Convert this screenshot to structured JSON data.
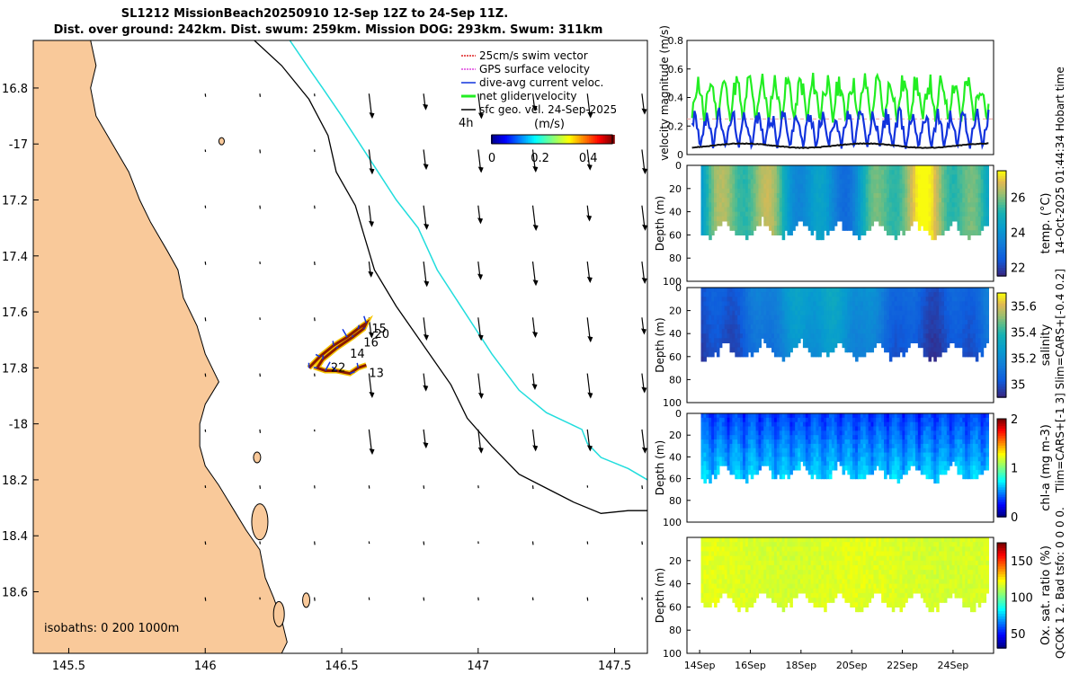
{
  "title": {
    "line1": "SL1212 MissionBeach20250910 12-Sep 12Z to 24-Sep 11Z.",
    "line2": "Dist. over ground: 242km. Dist. swum: 259km. Mission DOG: 293km. Swum: 311km"
  },
  "side_text": {
    "line1": "14-Oct-2025 01:44:34 Hobart time",
    "line2": "Tlim=CARS+[-1 3] Slim=CARS+[-0.4 0.2]",
    "line3": "QCOK 1  2. Bad tsfo: 0  0  0  0."
  },
  "colors": {
    "land": "#f9c99a",
    "isobath_200": "#000000",
    "isobath_1000": "#22dddd",
    "glider_net": "#22ee22",
    "dive_avg": "#1133dd",
    "swim": "#dd2222",
    "gps": "#dd44dd"
  },
  "chart_data": [
    {
      "type": "map",
      "xlim": [
        145.37,
        147.62
      ],
      "ylim": [
        -18.82,
        -16.63
      ],
      "x_ticks": [
        145.5,
        146,
        146.5,
        147,
        147.5
      ],
      "x_tick_labels": [
        "145.5",
        "146",
        "146.5",
        "147",
        "147.5"
      ],
      "y_ticks": [
        -16.8,
        -17,
        -17.2,
        -17.4,
        -17.6,
        -17.8,
        -18,
        -18.2,
        -18.4,
        -18.6
      ],
      "y_tick_labels": [
        "16.8",
        "-17",
        "17.2",
        "17.4",
        "17.6",
        "17.8",
        "-18",
        "18.2",
        "18.4",
        "18.6"
      ],
      "legend": {
        "position": "top-right",
        "entries": [
          "25cm/s swim vector",
          "GPS surface velocity",
          "dive-avg current veloc.",
          "net glider velocity",
          "sfc geo. vel. 24-Sep-2025"
        ]
      },
      "isobath_label": "isobaths: 0   200  1000m",
      "colorbar": {
        "title": "(m/s)",
        "ticks": [
          0,
          0.2,
          0.4
        ],
        "tick_labels": [
          "0",
          "0.2",
          "0.4"
        ],
        "range": [
          0,
          0.5
        ],
        "label_4h": "4h"
      },
      "track_labels": [
        {
          "text": "15",
          "lon": 146.61,
          "lat": -17.66
        },
        {
          "text": "20",
          "lon": 146.62,
          "lat": -17.68
        },
        {
          "text": "16",
          "lon": 146.58,
          "lat": -17.71
        },
        {
          "text": "14",
          "lon": 146.53,
          "lat": -17.75
        },
        {
          "text": "22",
          "lon": 146.46,
          "lat": -17.8
        },
        {
          "text": "13",
          "lon": 146.6,
          "lat": -17.82
        }
      ],
      "isobath_200": [
        [
          146.18,
          -16.63
        ],
        [
          146.28,
          -16.72
        ],
        [
          146.38,
          -16.84
        ],
        [
          146.45,
          -16.97
        ],
        [
          146.48,
          -17.1
        ],
        [
          146.55,
          -17.22
        ],
        [
          146.58,
          -17.32
        ],
        [
          146.62,
          -17.45
        ],
        [
          146.7,
          -17.58
        ],
        [
          146.8,
          -17.72
        ],
        [
          146.9,
          -17.86
        ],
        [
          146.96,
          -17.98
        ],
        [
          147.05,
          -18.08
        ],
        [
          147.15,
          -18.18
        ],
        [
          147.25,
          -18.23
        ],
        [
          147.35,
          -18.28
        ],
        [
          147.45,
          -18.32
        ],
        [
          147.55,
          -18.31
        ],
        [
          147.62,
          -18.31
        ]
      ],
      "isobath_1000": [
        [
          146.31,
          -16.63
        ],
        [
          146.38,
          -16.73
        ],
        [
          146.43,
          -16.8
        ],
        [
          146.5,
          -16.9
        ],
        [
          146.6,
          -17.05
        ],
        [
          146.7,
          -17.2
        ],
        [
          146.78,
          -17.3
        ],
        [
          146.85,
          -17.45
        ],
        [
          146.95,
          -17.6
        ],
        [
          147.05,
          -17.75
        ],
        [
          147.15,
          -17.88
        ],
        [
          147.25,
          -17.96
        ],
        [
          147.38,
          -18.02
        ],
        [
          147.4,
          -18.07
        ],
        [
          147.45,
          -18.12
        ],
        [
          147.55,
          -18.16
        ],
        [
          147.62,
          -18.2
        ]
      ],
      "coastline": [
        [
          145.37,
          -16.63
        ],
        [
          145.58,
          -16.63
        ],
        [
          145.6,
          -16.72
        ],
        [
          145.58,
          -16.8
        ],
        [
          145.6,
          -16.9
        ],
        [
          145.66,
          -17.0
        ],
        [
          145.72,
          -17.1
        ],
        [
          145.76,
          -17.2
        ],
        [
          145.8,
          -17.28
        ],
        [
          145.86,
          -17.38
        ],
        [
          145.9,
          -17.45
        ],
        [
          145.92,
          -17.55
        ],
        [
          145.97,
          -17.65
        ],
        [
          146.0,
          -17.75
        ],
        [
          146.05,
          -17.85
        ],
        [
          146.0,
          -17.93
        ],
        [
          145.98,
          -18.0
        ],
        [
          145.98,
          -18.08
        ],
        [
          146.0,
          -18.15
        ],
        [
          146.05,
          -18.22
        ],
        [
          146.1,
          -18.3
        ],
        [
          146.15,
          -18.38
        ],
        [
          146.2,
          -18.45
        ],
        [
          146.22,
          -18.55
        ],
        [
          146.25,
          -18.62
        ],
        [
          146.28,
          -18.7
        ],
        [
          146.3,
          -18.78
        ],
        [
          146.28,
          -18.82
        ],
        [
          145.37,
          -18.82
        ]
      ],
      "glider_track": [
        [
          146.38,
          -17.8
        ],
        [
          146.42,
          -17.76
        ],
        [
          146.47,
          -17.72
        ],
        [
          146.52,
          -17.69
        ],
        [
          146.56,
          -17.66
        ],
        [
          146.59,
          -17.64
        ],
        [
          146.58,
          -17.66
        ],
        [
          146.54,
          -17.69
        ],
        [
          146.48,
          -17.73
        ],
        [
          146.43,
          -17.77
        ],
        [
          146.41,
          -17.8
        ],
        [
          146.44,
          -17.81
        ],
        [
          146.48,
          -17.81
        ],
        [
          146.53,
          -17.82
        ],
        [
          146.56,
          -17.8
        ],
        [
          146.59,
          -17.79
        ]
      ],
      "geo_vectors": {
        "scale_note": "arrow length proportional to speed",
        "u": -0.02,
        "v": -0.15
      }
    },
    {
      "type": "line",
      "ylabel": "velocity magnitude (m/s)",
      "ylim": [
        0,
        0.8
      ],
      "y_ticks": [
        0,
        0.2,
        0.4,
        0.6,
        0.8
      ],
      "x_days": [
        13.5,
        25.6
      ],
      "series": [
        {
          "name": "net glider velocity",
          "color": "#22ee22",
          "base": 0.3,
          "amp": 0.35
        },
        {
          "name": "dive-avg current",
          "color": "#1133dd",
          "base": 0.12,
          "amp": 0.28
        },
        {
          "name": "sfc geo vel",
          "color": "#111111",
          "base": 0.06,
          "amp": 0.03
        }
      ]
    },
    {
      "type": "heatmap",
      "ylabel": "Depth (m)",
      "cbar_label": "temp. (°C)",
      "cbar_ticks": [
        "22",
        "24",
        "26"
      ],
      "cbar_range": [
        21.5,
        27.5
      ],
      "colormap": "parula",
      "y_ticks": [
        "0",
        "20",
        "40",
        "60",
        "80",
        "100"
      ]
    },
    {
      "type": "heatmap",
      "ylabel": "Depth (m)",
      "cbar_label": "salinity",
      "cbar_ticks": [
        "35",
        "35.2",
        "35.4",
        "35.6"
      ],
      "cbar_range": [
        34.9,
        35.7
      ],
      "colormap": "parula",
      "y_ticks": [
        "0",
        "20",
        "40",
        "60",
        "80",
        "100"
      ]
    },
    {
      "type": "heatmap",
      "ylabel": "Depth (m)",
      "cbar_label": "chl-a (mg m-3)",
      "cbar_ticks": [
        "0",
        "1",
        "2"
      ],
      "cbar_range": [
        0,
        2
      ],
      "colormap": "jet",
      "y_ticks": [
        "0",
        "20",
        "40",
        "60",
        "80",
        "100"
      ]
    },
    {
      "type": "heatmap",
      "ylabel": "Depth (m)",
      "cbar_label": "Ox. sat. ratio (%)",
      "cbar_ticks": [
        "50",
        "100",
        "150"
      ],
      "cbar_range": [
        30,
        175
      ],
      "colormap": "jet",
      "y_ticks": [
        "20",
        "40",
        "60",
        "80",
        "100"
      ],
      "x_tick_labels": [
        "14Sep",
        "16Sep",
        "18Sep",
        "20Sep",
        "22Sep",
        "24Sep"
      ],
      "x_ticks_day": [
        14,
        16,
        18,
        20,
        22,
        24
      ]
    }
  ]
}
